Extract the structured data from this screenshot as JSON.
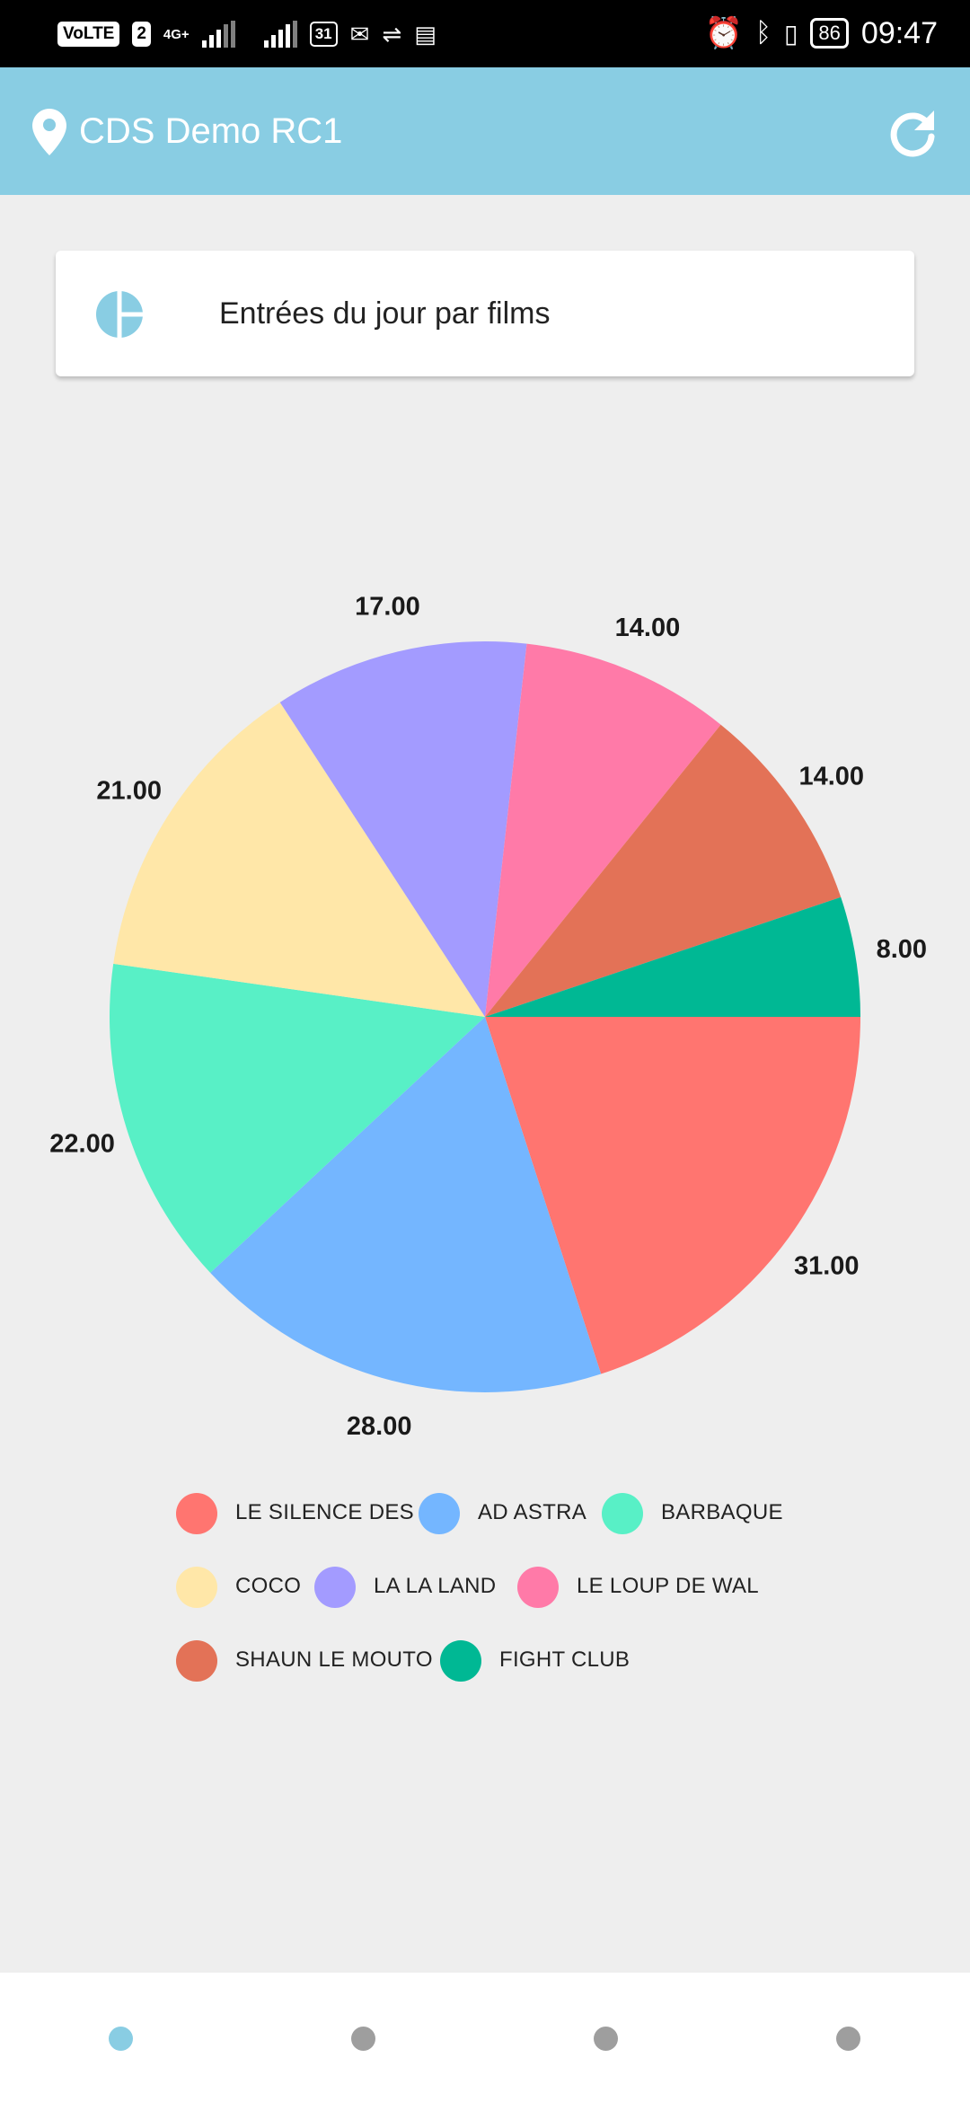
{
  "status_bar": {
    "left_badges": [
      "VoLTE",
      "2"
    ],
    "network": "4G+",
    "calendar_day": "31",
    "battery": "86",
    "time": "09:47"
  },
  "app_bar": {
    "title": "CDS Demo RC1",
    "location_icon": "location-pin-icon",
    "refresh_icon": "refresh-icon",
    "color": "#89cde3"
  },
  "card": {
    "icon": "pie-chart-icon",
    "title": "Entrées du jour par films"
  },
  "chart_data": {
    "type": "pie",
    "categories": [
      "LE SILENCE DES",
      "AD ASTRA",
      "BARBAQUE",
      "COCO",
      "LA LA LAND",
      "LE LOUP DE WAL",
      "SHAUN LE MOUTO",
      "FIGHT CLUB"
    ],
    "values": [
      31,
      28,
      22,
      21,
      17,
      14,
      14,
      8
    ],
    "value_labels": [
      "31.00",
      "28.00",
      "22.00",
      "21.00",
      "17.00",
      "14.00",
      "14.00",
      "8.00"
    ],
    "colors": [
      "#ff7570",
      "#74b6ff",
      "#58f0c6",
      "#ffe7a8",
      "#a39bff",
      "#ff7aa8",
      "#e37257",
      "#00b894"
    ],
    "legend": "bottom",
    "start": "3 o'clock, clockwise"
  },
  "bottom_nav": {
    "items": [
      {
        "name": "page-1",
        "active": true
      },
      {
        "name": "page-2",
        "active": false
      },
      {
        "name": "page-3",
        "active": false
      },
      {
        "name": "page-4",
        "active": false
      }
    ],
    "active_color": "#89cde3",
    "inactive_color": "#9e9e9e"
  }
}
